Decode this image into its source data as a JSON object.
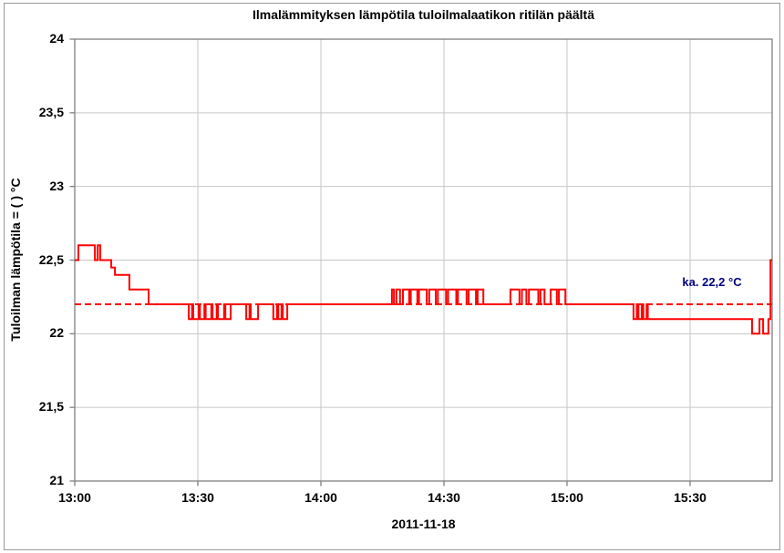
{
  "chart_data": {
    "type": "line",
    "title": "Ilmalämmityksen lämpötila tuloilmalaatikon ritilän päältä",
    "xlabel": "2011-11-18",
    "ylabel": "Tuloilman lämpötila = ( ) °C",
    "x_axis": {
      "tick_labels": [
        "13:00",
        "13:30",
        "14:00",
        "14:30",
        "15:00",
        "15:30"
      ],
      "tick_minutes": [
        0,
        30,
        60,
        90,
        120,
        150
      ],
      "range_minutes": [
        0,
        170
      ],
      "start_time": "13:00",
      "end_time": "15:50"
    },
    "y_axis": {
      "tick_labels": [
        "24",
        "23,5",
        "23",
        "22,5",
        "22",
        "21,5",
        "21"
      ],
      "tick_values": [
        24,
        23.5,
        23,
        22.5,
        22,
        21.5,
        21
      ],
      "range": [
        21,
        24
      ]
    },
    "grid": true,
    "legend": "none",
    "average_line": {
      "value": 22.2,
      "label": "ka. 22,2 °C",
      "style": "dashed",
      "color": "#ff0000",
      "label_color": "#000080"
    },
    "series": [
      {
        "name": "Tuloilman lämpötila",
        "color": "#ff0000",
        "step": true,
        "points_time_min_value_c": [
          [
            0,
            22.5
          ],
          [
            0.9,
            22.6
          ],
          [
            4.9,
            22.5
          ],
          [
            5.6,
            22.6
          ],
          [
            6.2,
            22.5
          ],
          [
            8.9,
            22.45
          ],
          [
            9.8,
            22.4
          ],
          [
            13.3,
            22.3
          ],
          [
            18,
            22.2
          ],
          [
            27.8,
            22.1
          ],
          [
            28.6,
            22.2
          ],
          [
            28.9,
            22.1
          ],
          [
            30.2,
            22.2
          ],
          [
            30.5,
            22.1
          ],
          [
            31.6,
            22.2
          ],
          [
            31.9,
            22.1
          ],
          [
            33.3,
            22.2
          ],
          [
            33.6,
            22.1
          ],
          [
            34.6,
            22.2
          ],
          [
            34.9,
            22.1
          ],
          [
            36.4,
            22.2
          ],
          [
            36.7,
            22.1
          ],
          [
            38.0,
            22.2
          ],
          [
            41.8,
            22.1
          ],
          [
            42.6,
            22.2
          ],
          [
            42.9,
            22.1
          ],
          [
            44.7,
            22.2
          ],
          [
            48.4,
            22.1
          ],
          [
            49.3,
            22.2
          ],
          [
            49.6,
            22.1
          ],
          [
            50.4,
            22.2
          ],
          [
            50.7,
            22.1
          ],
          [
            51.8,
            22.2
          ],
          [
            77.3,
            22.3
          ],
          [
            77.8,
            22.2
          ],
          [
            78.4,
            22.3
          ],
          [
            79.3,
            22.2
          ],
          [
            80.0,
            22.3
          ],
          [
            81.5,
            22.2
          ],
          [
            81.9,
            22.3
          ],
          [
            83.5,
            22.2
          ],
          [
            83.9,
            22.3
          ],
          [
            85.8,
            22.2
          ],
          [
            86.4,
            22.3
          ],
          [
            88.0,
            22.2
          ],
          [
            88.5,
            22.3
          ],
          [
            90.5,
            22.2
          ],
          [
            91.0,
            22.3
          ],
          [
            93.0,
            22.2
          ],
          [
            93.4,
            22.3
          ],
          [
            95.5,
            22.2
          ],
          [
            96.0,
            22.3
          ],
          [
            97.8,
            22.2
          ],
          [
            98.2,
            22.3
          ],
          [
            99.6,
            22.2
          ],
          [
            106.2,
            22.3
          ],
          [
            108.4,
            22.2
          ],
          [
            109.0,
            22.3
          ],
          [
            110.1,
            22.2
          ],
          [
            110.7,
            22.3
          ],
          [
            113.0,
            22.2
          ],
          [
            113.5,
            22.3
          ],
          [
            114.5,
            22.2
          ],
          [
            116.0,
            22.3
          ],
          [
            117.5,
            22.2
          ],
          [
            118.0,
            22.3
          ],
          [
            119.6,
            22.2
          ],
          [
            136.2,
            22.1
          ],
          [
            137.0,
            22.2
          ],
          [
            137.4,
            22.1
          ],
          [
            138.2,
            22.2
          ],
          [
            138.6,
            22.1
          ],
          [
            139.4,
            22.2
          ],
          [
            139.7,
            22.1
          ],
          [
            165.1,
            22.0
          ],
          [
            166.9,
            22.1
          ],
          [
            167.8,
            22.0
          ],
          [
            169.1,
            22.1
          ],
          [
            169.6,
            22.5
          ]
        ]
      }
    ]
  },
  "colors": {
    "background": "#ffffff",
    "figure_border": "#9a9a9a",
    "plot_border": "#808080",
    "gridline": "#c6c6c6",
    "tick": "#808080",
    "text": "#000000"
  }
}
